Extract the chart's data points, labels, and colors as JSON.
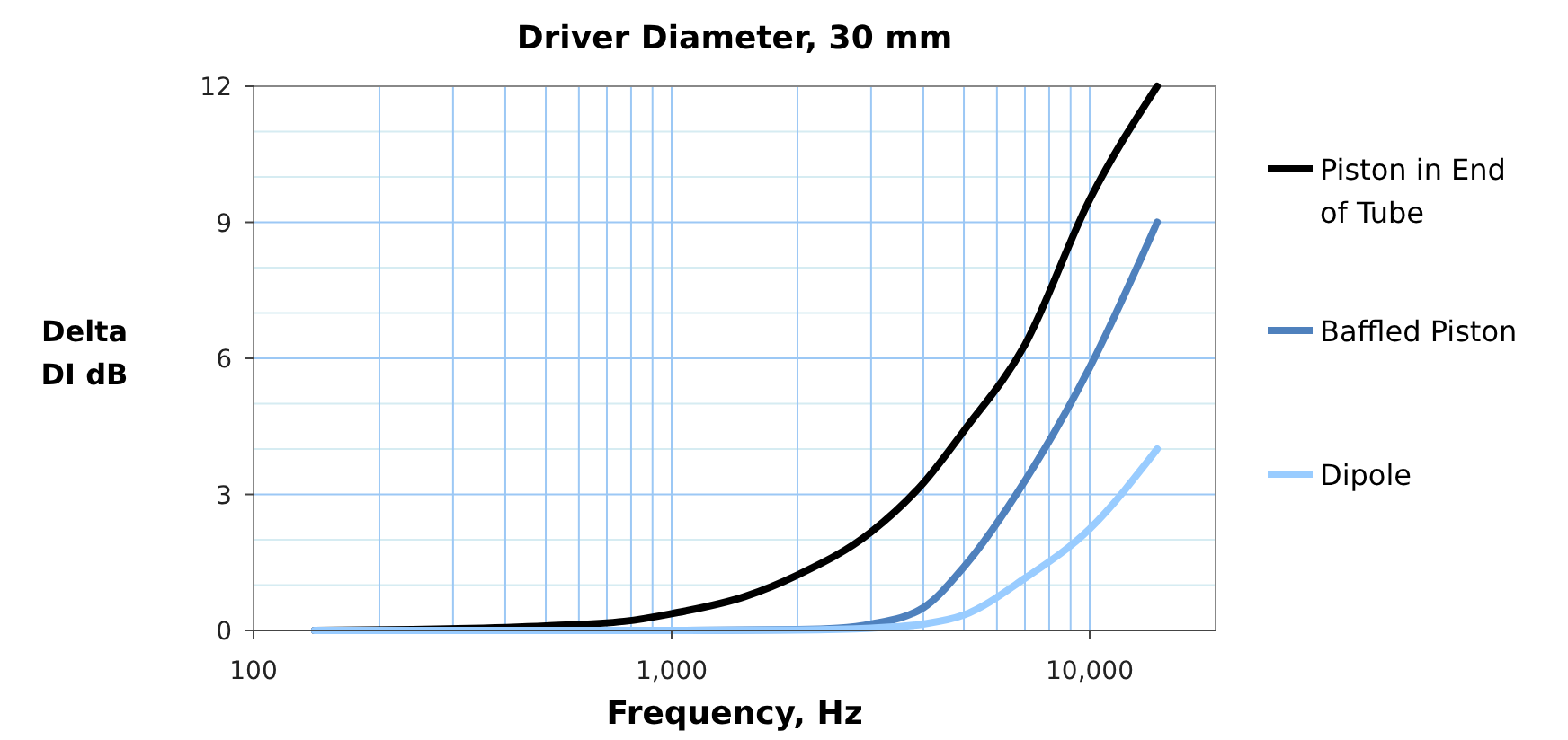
{
  "chart_data": {
    "type": "line",
    "title": "Driver Diameter, 30 mm",
    "xlabel": "Frequency, Hz",
    "ylabel": "Delta DI dB",
    "log": "x",
    "grid": true,
    "legend": "right",
    "line_style": "solid",
    "marker": "none",
    "xlim": [
      100,
      20000
    ],
    "xticks": [
      {
        "value": 100,
        "label": "100"
      },
      {
        "value": 200,
        "label": null
      },
      {
        "value": 300,
        "label": null
      },
      {
        "value": 400,
        "label": null
      },
      {
        "value": 500,
        "label": null
      },
      {
        "value": 600,
        "label": null
      },
      {
        "value": 700,
        "label": null
      },
      {
        "value": 800,
        "label": null
      },
      {
        "value": 900,
        "label": null
      },
      {
        "value": 1000,
        "label": "1,000"
      },
      {
        "value": 2000,
        "label": null
      },
      {
        "value": 3000,
        "label": null
      },
      {
        "value": 4000,
        "label": null
      },
      {
        "value": 5000,
        "label": null
      },
      {
        "value": 6000,
        "label": null
      },
      {
        "value": 7000,
        "label": null
      },
      {
        "value": 8000,
        "label": null
      },
      {
        "value": 9000,
        "label": null
      },
      {
        "value": 10000,
        "label": "10,000"
      },
      {
        "value": 20000,
        "label": null
      }
    ],
    "ylim": [
      0,
      12
    ],
    "yticks": [
      0,
      {
        "value": 1,
        "label": null
      },
      {
        "value": 2,
        "label": null
      },
      3,
      {
        "value": 4,
        "label": null
      },
      {
        "value": 5,
        "label": null
      },
      6,
      {
        "value": 7,
        "label": null
      },
      {
        "value": 8,
        "label": null
      },
      9,
      {
        "value": 10,
        "label": null
      },
      {
        "value": 11,
        "label": null
      },
      12
    ],
    "series": [
      {
        "name": "Piston in End of Tube",
        "color": "#000000",
        "x": [
          140,
          240,
          500,
          770,
          1000,
          1500,
          2000,
          3000,
          4000,
          5000,
          7000,
          10000,
          14500
        ],
        "values": [
          0,
          0.02,
          0.1,
          0.2,
          0.37,
          0.75,
          1.22,
          2.17,
          3.25,
          4.4,
          6.3,
          9.5,
          12
        ]
      },
      {
        "name": "Baffled Piston",
        "color": "#4f81bd",
        "x": [
          140,
          1000,
          2000,
          2500,
          3000,
          4000,
          5000,
          7000,
          10000,
          14500
        ],
        "values": [
          0,
          0,
          0.02,
          0.05,
          0.14,
          0.5,
          1.4,
          3.3,
          5.8,
          9
        ]
      },
      {
        "name": "Dipole",
        "color": "#99ccff",
        "x": [
          140,
          1000,
          2000,
          3000,
          4000,
          5000,
          7000,
          10000,
          14500
        ],
        "values": [
          0,
          0,
          0.01,
          0.05,
          0.14,
          0.34,
          1.15,
          2.24,
          4
        ]
      }
    ]
  }
}
